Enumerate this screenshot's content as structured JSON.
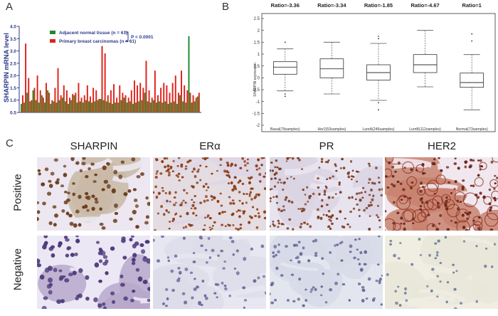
{
  "panels": {
    "a": "A",
    "b": "B",
    "c": "C"
  },
  "panel_a": {
    "ylabel": "SHARPIN mRNA level",
    "legend": [
      {
        "label": "Adjacent normal tissue (n = 61)",
        "color": "#1e8a2e"
      },
      {
        "label": "Primary breast carcinomas (n = 61)",
        "color": "#e0231c"
      }
    ],
    "pvalue": "P < 0.0001",
    "colors": {
      "normal": "#1e8a2e",
      "tumor": "#e0231c",
      "shared": "#8a6b2a",
      "axis": "#2b3a8a"
    }
  },
  "panel_b": {
    "ylabel": "SHARPIN expression",
    "ratios": [
      "Ratio=-3.36",
      "Ratio=-3.34",
      "Ratio=-1.85",
      "Ratio=-4.67",
      "Ratio=1"
    ]
  },
  "chart_data": [
    {
      "type": "bar",
      "ylabel": "SHARPIN mRNA level",
      "ylim": [
        0.5,
        4.0
      ],
      "y_ticks": [
        "0.5",
        "1.0",
        "1.5",
        "2.0",
        "2.5",
        "3.0",
        "3.5",
        "4.0"
      ],
      "series": [
        {
          "name": "Adjacent normal tissue (n = 61)",
          "values": [
            0.85,
            0.9,
            1.3,
            0.95,
            1.4,
            1.0,
            0.9,
            1.2,
            0.9,
            1.4,
            0.85,
            0.95,
            0.9,
            1.0,
            1.1,
            0.95,
            0.85,
            1.0,
            1.2,
            0.9,
            0.95,
            0.9,
            1.0,
            0.95,
            0.9,
            0.95,
            1.0,
            1.05,
            1.0,
            0.95,
            0.9,
            0.85,
            0.9,
            0.9,
            1.0,
            1.1,
            0.9,
            0.95,
            0.85,
            0.9,
            0.95,
            1.0,
            1.3,
            0.95,
            0.9,
            1.0,
            0.9,
            0.95,
            0.9,
            0.95,
            0.85,
            0.9,
            0.95,
            0.85,
            1.2,
            0.95,
            0.9,
            3.6,
            0.9,
            0.95,
            1.15
          ]
        },
        {
          "name": "Primary breast carcinomas (n = 61)",
          "values": [
            1.2,
            3.3,
            1.9,
            1.0,
            1.5,
            2.0,
            1.4,
            1.1,
            1.7,
            1.3,
            1.0,
            1.5,
            2.3,
            1.2,
            1.6,
            1.4,
            1.1,
            1.25,
            1.3,
            1.7,
            1.1,
            1.2,
            1.6,
            1.15,
            1.5,
            1.4,
            1.05,
            3.2,
            2.9,
            1.2,
            1.4,
            1.65,
            1.1,
            1.6,
            1.3,
            1.2,
            1.1,
            1.4,
            1.8,
            1.6,
            1.7,
            1.5,
            2.6,
            1.4,
            1.1,
            2.2,
            1.2,
            1.5,
            1.7,
            1.6,
            1.3,
            1.7,
            2.0,
            1.3,
            2.2,
            1.6,
            1.4,
            1.3,
            1.2,
            1.1,
            1.3
          ]
        }
      ]
    },
    {
      "type": "box",
      "ylabel": "SHARPIN expression",
      "ylim": [
        -2,
        2.5
      ],
      "y_ticks": [
        "-2",
        "-1.5",
        "-1",
        "-0.5",
        "0",
        "0.5",
        "1",
        "1.5",
        "2",
        "2.5"
      ],
      "categories": [
        "Basal(79samples)",
        "Her2(53samples)",
        "LumA(246samples)",
        "LumB(112samples)",
        "Normal(73samples)"
      ],
      "ratios": [
        "Ratio=-3.36",
        "Ratio=-3.34",
        "Ratio=-1.85",
        "Ratio=-4.67",
        "Ratio=1"
      ],
      "boxes": [
        {
          "min": -0.55,
          "q1": 0.15,
          "median": 0.45,
          "q3": 0.68,
          "max": 1.22,
          "outliers": [
            1.5,
            -0.68,
            -0.78
          ]
        },
        {
          "min": -0.68,
          "q1": 0.0,
          "median": 0.38,
          "q3": 0.8,
          "max": 1.5,
          "outliers": []
        },
        {
          "min": -0.95,
          "q1": -0.1,
          "median": 0.22,
          "q3": 0.55,
          "max": 1.45,
          "outliers": [
            1.75,
            1.65,
            -1.05,
            -1.35
          ]
        },
        {
          "min": -0.38,
          "q1": 0.22,
          "median": 0.55,
          "q3": 0.98,
          "max": 2.0,
          "outliers": []
        },
        {
          "min": -1.35,
          "q1": -0.4,
          "median": -0.2,
          "q3": 0.2,
          "max": 0.98,
          "outliers": [
            1.85,
            1.55
          ]
        }
      ]
    }
  ],
  "panel_c": {
    "columns": [
      "SHARPIN",
      "ERα",
      "PR",
      "HER2"
    ],
    "rows": [
      "Positive",
      "Negative"
    ]
  }
}
